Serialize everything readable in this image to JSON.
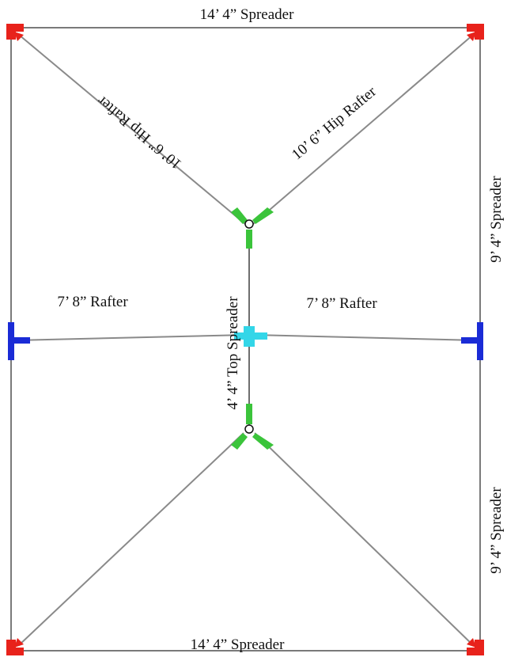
{
  "labels": {
    "top_spreader": "14’ 4” Spreader",
    "bottom_spreader": "14’ 4” Spreader",
    "right_spreader_upper": "9’ 4” Spreader",
    "right_spreader_lower": "9’ 4” Spreader",
    "hip_rafter_left": "10’ 6” Hip Rafter",
    "hip_rafter_right": "10’ 6” Hip Rafter",
    "rafter_left": "7’ 8” Rafter",
    "rafter_right": "7’ 8” Rafter",
    "top_center_spreader": "4’ 4” Top Spreader"
  },
  "colors": {
    "corner_connector": "#e8221b",
    "side_connector": "#1a2bd6",
    "hub_connector": "#3bc43b",
    "center_connector": "#33d6e8",
    "frame": "#7a7a7a",
    "text": "#111111"
  }
}
